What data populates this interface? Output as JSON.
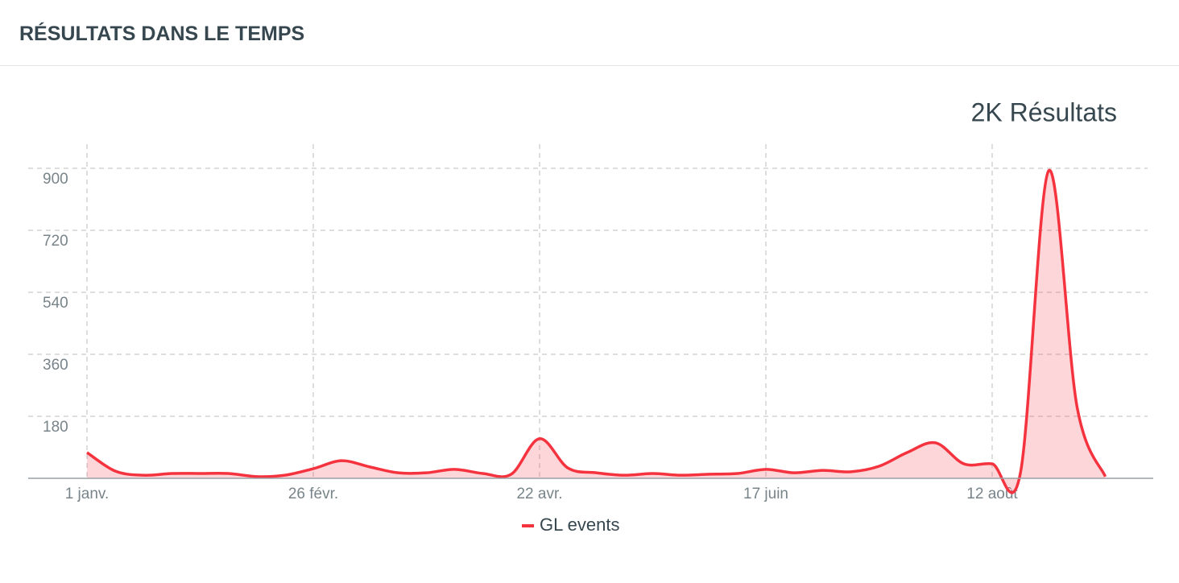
{
  "header": {
    "title": "RÉSULTATS DANS LE TEMPS"
  },
  "chart_data": {
    "type": "line",
    "total_label": "2K Résultats",
    "categories": [
      "1 janv.",
      null,
      null,
      null,
      null,
      null,
      null,
      null,
      "26 févr.",
      null,
      null,
      null,
      null,
      null,
      null,
      null,
      "22 avr.",
      null,
      null,
      null,
      null,
      null,
      null,
      null,
      "17 juin",
      null,
      null,
      null,
      null,
      null,
      null,
      null,
      "12 août",
      null,
      null,
      null,
      null
    ],
    "series": [
      {
        "name": "GL events",
        "color": "#f5333f",
        "values": [
          75,
          21,
          9,
          14,
          14,
          14,
          5,
          9,
          28,
          51,
          33,
          16,
          16,
          26,
          14,
          12,
          115,
          30,
          16,
          9,
          14,
          9,
          12,
          14,
          26,
          16,
          23,
          19,
          35,
          75,
          103,
          42,
          42,
          16,
          893,
          208,
          5
        ]
      }
    ],
    "ylim": [
      0,
      970
    ],
    "yticks": [
      180,
      360,
      540,
      720,
      900
    ],
    "grid": true
  }
}
